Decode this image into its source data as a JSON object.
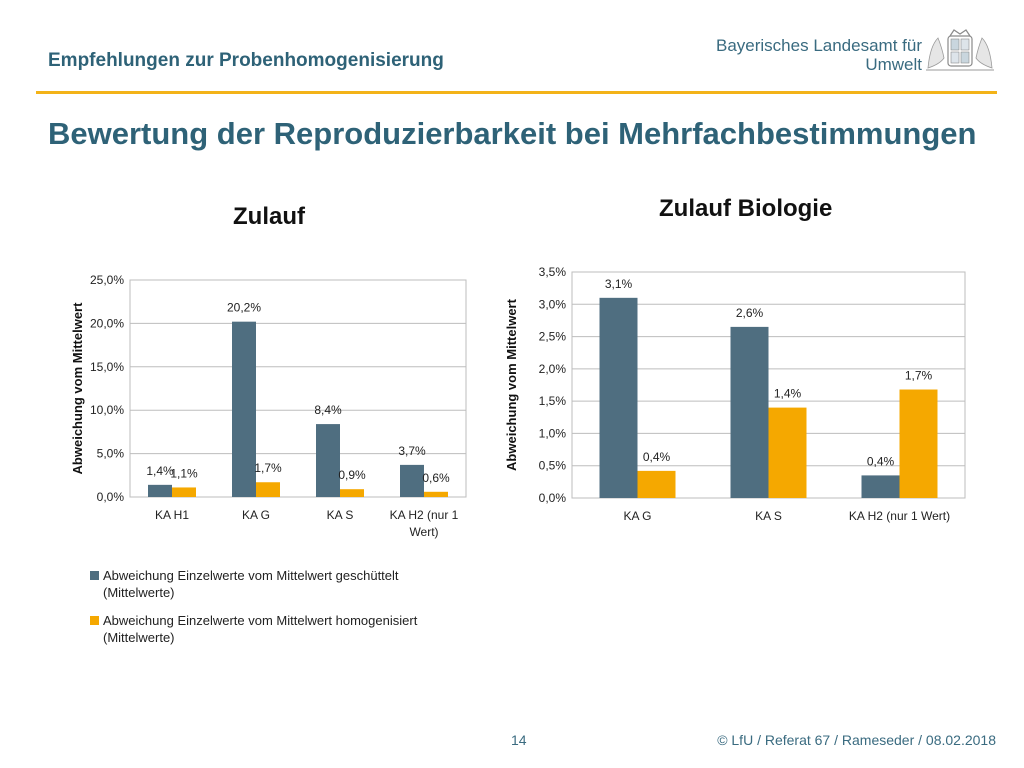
{
  "header": {
    "subtitle": "Empfehlungen zur Probenhomogenisierung",
    "org_line1": "Bayerisches Landesamt für",
    "org_line2": "Umwelt",
    "logo_icon": "bavarian-coat-of-arms-icon",
    "accent_color": "#f3b318"
  },
  "title": "Bewertung der Reproduzierbarkeit bei Mehrfachbestimmungen",
  "legend": {
    "items": [
      {
        "label": "Abweichung Einzelwerte vom Mittelwert geschüttelt (Mittelwerte)",
        "color": "#4f6e80"
      },
      {
        "label": "Abweichung Einzelwerte vom Mittelwert homogenisiert (Mittelwerte)",
        "color": "#f5a800"
      }
    ]
  },
  "footer": {
    "page": "14",
    "copyright": "© LfU / Referat 67 / Rameseder / 08.02.2018"
  },
  "chart_data": [
    {
      "type": "bar",
      "title": "Zulauf",
      "ylabel": "Abweichung vom Mittelwert",
      "ylim": [
        0,
        25
      ],
      "yticks": [
        "0,0%",
        "5,0%",
        "10,0%",
        "15,0%",
        "20,0%",
        "25,0%"
      ],
      "categories": [
        [
          "KA H1"
        ],
        [
          "KA G"
        ],
        [
          "KA S"
        ],
        [
          "KA H2 (nur 1",
          "Wert)"
        ]
      ],
      "series": [
        {
          "name": "Abweichung Einzelwerte vom Mittelwert geschüttelt (Mittelwerte)",
          "values": [
            1.4,
            20.2,
            8.4,
            3.7
          ],
          "labels": [
            "1,4%",
            "20,2%",
            "8,4%",
            "3,7%"
          ],
          "color": "#4f6e80"
        },
        {
          "name": "Abweichung Einzelwerte vom Mittelwert homogenisiert (Mittelwerte)",
          "values": [
            1.1,
            1.7,
            0.9,
            0.6
          ],
          "labels": [
            "1,1%",
            "1,7%",
            "0,9%",
            "0,6%"
          ],
          "color": "#f5a800"
        }
      ],
      "grid": true,
      "legend": "bottom"
    },
    {
      "type": "bar",
      "title": "Zulauf Biologie",
      "ylabel": "Abweichung vom Mittelwert",
      "ylim": [
        0,
        3.5
      ],
      "yticks": [
        "0,0%",
        "0,5%",
        "1,0%",
        "1,5%",
        "2,0%",
        "2,5%",
        "3,0%",
        "3,5%"
      ],
      "categories": [
        [
          "KA G"
        ],
        [
          "KA S"
        ],
        [
          "KA H2 (nur 1 Wert)"
        ]
      ],
      "series": [
        {
          "values": [
            3.1,
            2.65,
            0.35
          ],
          "labels": [
            "3,1%",
            "2,6%",
            "0,4%"
          ],
          "color": "#4f6e80"
        },
        {
          "values": [
            0.42,
            1.4,
            1.68
          ],
          "labels": [
            "0,4%",
            "1,4%",
            "1,7%"
          ],
          "color": "#f5a800"
        }
      ],
      "grid": true,
      "legend": "none"
    }
  ]
}
